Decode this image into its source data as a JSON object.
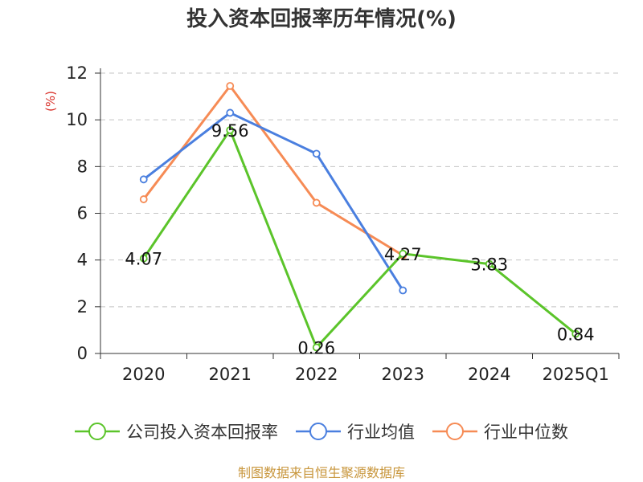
{
  "chart_data": {
    "type": "line",
    "title": "投入资本回报率历年情况(%)",
    "ylabel": "(%)",
    "xlabel": "",
    "ylim": [
      0,
      12
    ],
    "yticks": [
      0,
      2,
      4,
      6,
      8,
      10,
      12
    ],
    "grid": true,
    "categories": [
      "2020",
      "2021",
      "2022",
      "2023",
      "2024",
      "2025Q1"
    ],
    "series": [
      {
        "name": "公司投入资本回报率",
        "color": "#5bc42a",
        "values": [
          4.07,
          9.56,
          0.26,
          4.27,
          3.83,
          0.84
        ],
        "labels": [
          "4.07",
          "9.56",
          "0.26",
          "4.27",
          "3.83",
          "0.84"
        ]
      },
      {
        "name": "行业均值",
        "color": "#4a7fdf",
        "values": [
          7.45,
          10.3,
          8.55,
          2.7,
          null,
          null
        ]
      },
      {
        "name": "行业中位数",
        "color": "#f68b55",
        "values": [
          6.6,
          11.45,
          6.45,
          4.2,
          null,
          null
        ]
      }
    ],
    "legend_position": "bottom"
  },
  "source": "制图数据来自恒生聚源数据库"
}
